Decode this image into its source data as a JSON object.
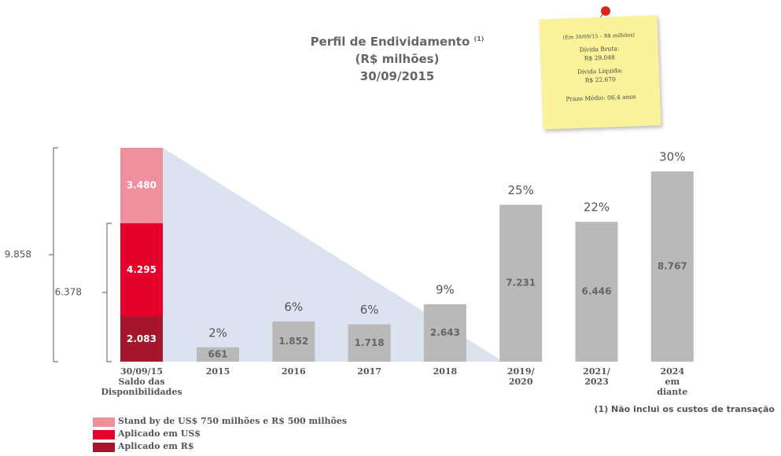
{
  "chart_data": {
    "type": "bar",
    "title": "Perfil de Endividamento",
    "title_note": "(1)",
    "subtitle": "(R$ milhões)",
    "date": "30/09/2015",
    "categories": [
      "30/09/15\nSaldo das\nDisponibilidades",
      "2015",
      "2016",
      "2017",
      "2018",
      "2019/\n2020",
      "2021/\n2023",
      "2024\nem\ndiante"
    ],
    "series": [
      {
        "name": "Aplicado em R$",
        "color": "#a3162b",
        "values": [
          2083,
          null,
          null,
          null,
          null,
          null,
          null,
          null
        ],
        "value_labels": [
          "2.083",
          null,
          null,
          null,
          null,
          null,
          null,
          null
        ]
      },
      {
        "name": "Aplicado em US$",
        "color": "#e4002b",
        "values": [
          4295,
          null,
          null,
          null,
          null,
          null,
          null,
          null
        ],
        "value_labels": [
          "4.295",
          null,
          null,
          null,
          null,
          null,
          null,
          null
        ]
      },
      {
        "name": "Stand by de US$ 750 milhões e R$ 500 milhões",
        "color": "#f0909f",
        "values": [
          3480,
          null,
          null,
          null,
          null,
          null,
          null,
          null
        ],
        "value_labels": [
          "3.480",
          null,
          null,
          null,
          null,
          null,
          null,
          null
        ]
      }
    ],
    "maturities": {
      "color": "#b9b9b9",
      "values": [
        null,
        661,
        1852,
        1718,
        2643,
        7231,
        6446,
        8767
      ],
      "value_labels": [
        null,
        "661",
        "1.852",
        "1.718",
        "2.643",
        "7.231",
        "6.446",
        "8.767"
      ],
      "share_labels": [
        null,
        "2%",
        "6%",
        "6%",
        "9%",
        "25%",
        "22%",
        "30%"
      ]
    },
    "brackets": [
      {
        "value": 9858,
        "label": "9.858"
      },
      {
        "value": 6378,
        "label": "6.378"
      }
    ],
    "footnote": "(1) Não inclui os custos de transação",
    "note": {
      "header": "(Em 30/09/15 – R$ milhões)",
      "lines": [
        "Dívida Bruta:",
        "R$ 29.048",
        "Dívida Líquida:",
        "R$ 22.670",
        "Prazo Médio: 06,4 anos"
      ]
    }
  }
}
